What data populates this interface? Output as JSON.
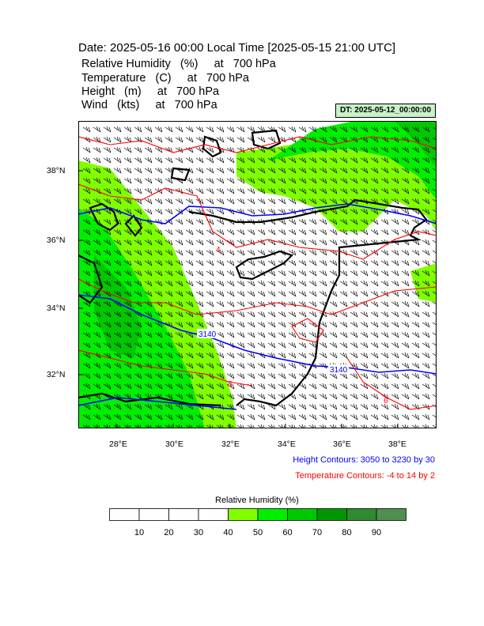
{
  "title": "Date: 2025-05-16  00:00 Local Time [2025-05-15  21:00 UTC]",
  "variables": [
    {
      "text": "Relative Humidity   (%)     at   700 hPa"
    },
    {
      "text": "Temperature   (C)     at   700 hPa"
    },
    {
      "text": "Height   (m)     at   700 hPa"
    },
    {
      "text": "Wind   (kts)     at   700 hPa"
    }
  ],
  "dt_label": "DT: 2025-05-12_00:00:00",
  "lon_labels": [
    "28°E",
    "30°E",
    "32°E",
    "34°E",
    "36°E",
    "38°E"
  ],
  "lat_labels": [
    "38°N",
    "36°N",
    "34°N",
    "32°N"
  ],
  "contour_labels": {
    "height_3140_a": "3140",
    "height_3140_b": "3140",
    "temp_4": "4",
    "temp_8": "8",
    "temp_6": "6"
  },
  "height_caption": "Height Contours: 3050 to 3230 by 30",
  "temp_caption": "Temperature Contours: -4 to 14 by 2",
  "colorbar": {
    "title": "Relative Humidity  (%)",
    "labels": [
      "10",
      "20",
      "30",
      "40",
      "50",
      "60",
      "70",
      "80",
      "90"
    ],
    "colors": [
      "#ffffff",
      "#ffffff",
      "#ffffff",
      "#ffffff",
      "#80ff00",
      "#00ee00",
      "#00c800",
      "#009600",
      "#2e8b2e",
      "#4f8f4f"
    ]
  },
  "colors": {
    "height_contour": "#0000ff",
    "temp_contour": "#ff0000",
    "coast": "#000000",
    "dt_bg": "#c8f2c8"
  }
}
